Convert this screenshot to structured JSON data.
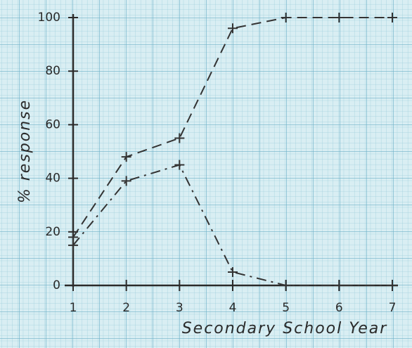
{
  "chart_data": {
    "type": "line",
    "x_label": "Secondary School Year",
    "y_label": "% response",
    "x": [
      1,
      2,
      3,
      4,
      5,
      6,
      7
    ],
    "series": [
      {
        "color": "#333333",
        "style": "dashed",
        "values": [
          18,
          48,
          55,
          96,
          100,
          100,
          100
        ]
      },
      {
        "color": "#333333",
        "style": "dashdot",
        "values": [
          15,
          39,
          45,
          5,
          0,
          0,
          0
        ]
      }
    ],
    "xlim": [
      1,
      7
    ],
    "ylim": [
      0,
      100
    ],
    "xticks": [
      1,
      2,
      3,
      4,
      5,
      6,
      7
    ],
    "yticks": [
      0,
      20,
      40,
      60,
      80,
      100
    ]
  }
}
